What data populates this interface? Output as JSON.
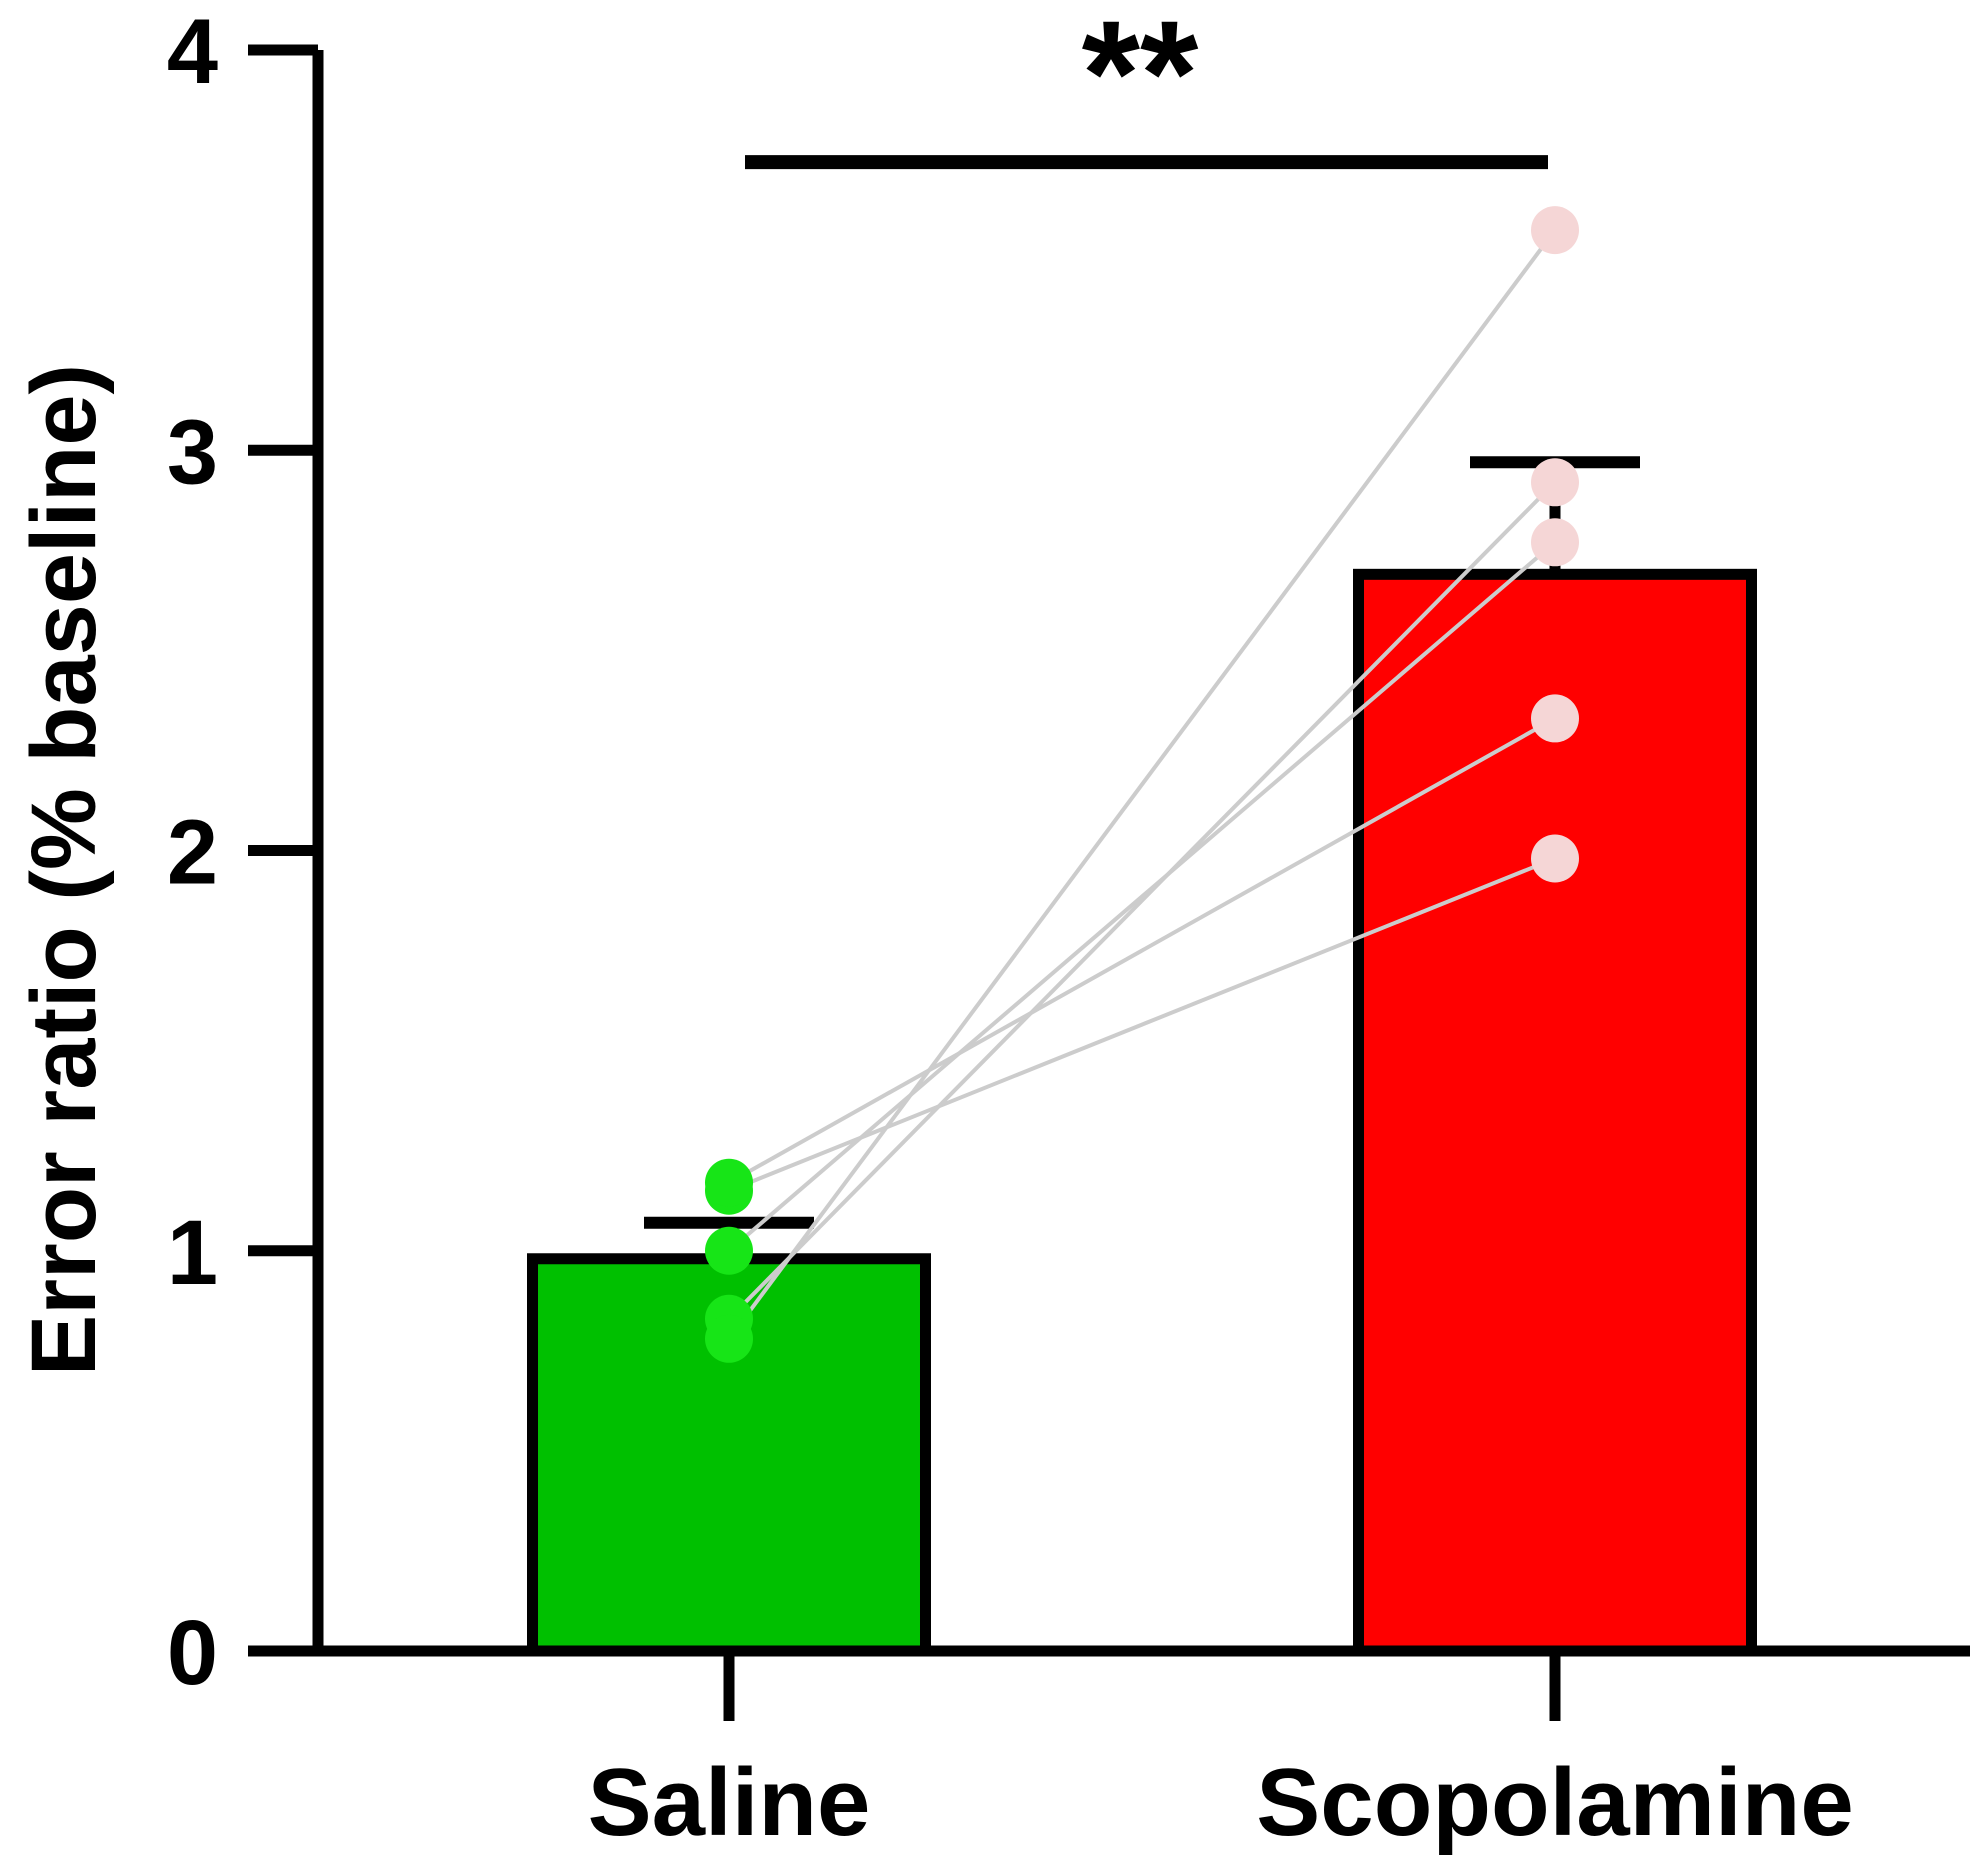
{
  "chart_data": {
    "type": "bar",
    "title": "",
    "xlabel": "",
    "ylabel": "Error ratio (% baseline)",
    "ylim": [
      0,
      4
    ],
    "yticks": [
      0,
      1,
      2,
      3,
      4
    ],
    "categories": [
      "Saline",
      "Scopolamine"
    ],
    "values": [
      0.98,
      2.69
    ],
    "errors": [
      0.09,
      0.28
    ],
    "colors": [
      "#00c000",
      "#ff0000"
    ],
    "point_colors": [
      "#17e517",
      "#f5d6d6"
    ],
    "paired_points": [
      {
        "saline": 1.15,
        "scopolamine": 1.98
      },
      {
        "saline": 1.17,
        "scopolamine": 2.33
      },
      {
        "saline": 1.0,
        "scopolamine": 2.77
      },
      {
        "saline": 0.83,
        "scopolamine": 2.92
      },
      {
        "saline": 0.78,
        "scopolamine": 3.55
      }
    ],
    "significance": {
      "label": "**",
      "y": 3.72
    },
    "grid": false,
    "legend": "none"
  }
}
